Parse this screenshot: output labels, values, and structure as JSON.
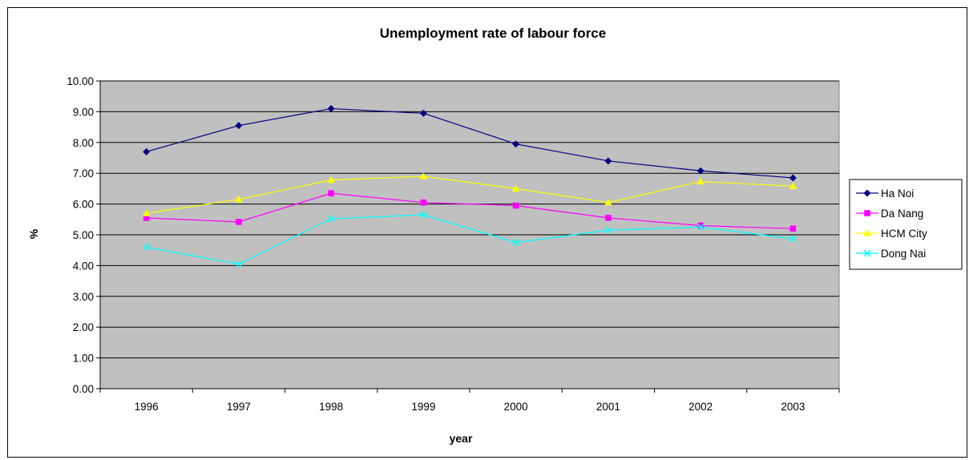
{
  "chart_data": {
    "type": "line",
    "title": "Unemployment rate of labour force",
    "xlabel": "year",
    "ylabel": "%",
    "categories": [
      "1996",
      "1997",
      "1998",
      "1999",
      "2000",
      "2001",
      "2002",
      "2003"
    ],
    "ylim": [
      0,
      10
    ],
    "yticks": [
      "0.00",
      "1.00",
      "2.00",
      "3.00",
      "4.00",
      "5.00",
      "6.00",
      "7.00",
      "8.00",
      "9.00",
      "10.00"
    ],
    "grid": true,
    "legend_position": "right",
    "plot_background": "#c0c0c0",
    "series": [
      {
        "name": "Ha Noi",
        "color": "#000080",
        "marker": "diamond",
        "values": [
          7.7,
          8.55,
          9.1,
          8.95,
          7.95,
          7.4,
          7.08,
          6.85
        ]
      },
      {
        "name": "Da Nang",
        "color": "#ff00ff",
        "marker": "square",
        "values": [
          5.55,
          5.42,
          6.35,
          6.05,
          5.95,
          5.55,
          5.3,
          5.2
        ]
      },
      {
        "name": "HCM City",
        "color": "#ffff00",
        "marker": "triangle",
        "values": [
          5.7,
          6.15,
          6.78,
          6.9,
          6.5,
          6.05,
          6.73,
          6.58
        ]
      },
      {
        "name": "Dong Nai",
        "color": "#00ffff",
        "marker": "x",
        "values": [
          4.6,
          4.05,
          5.52,
          5.65,
          4.75,
          5.15,
          5.25,
          4.87
        ]
      }
    ]
  }
}
